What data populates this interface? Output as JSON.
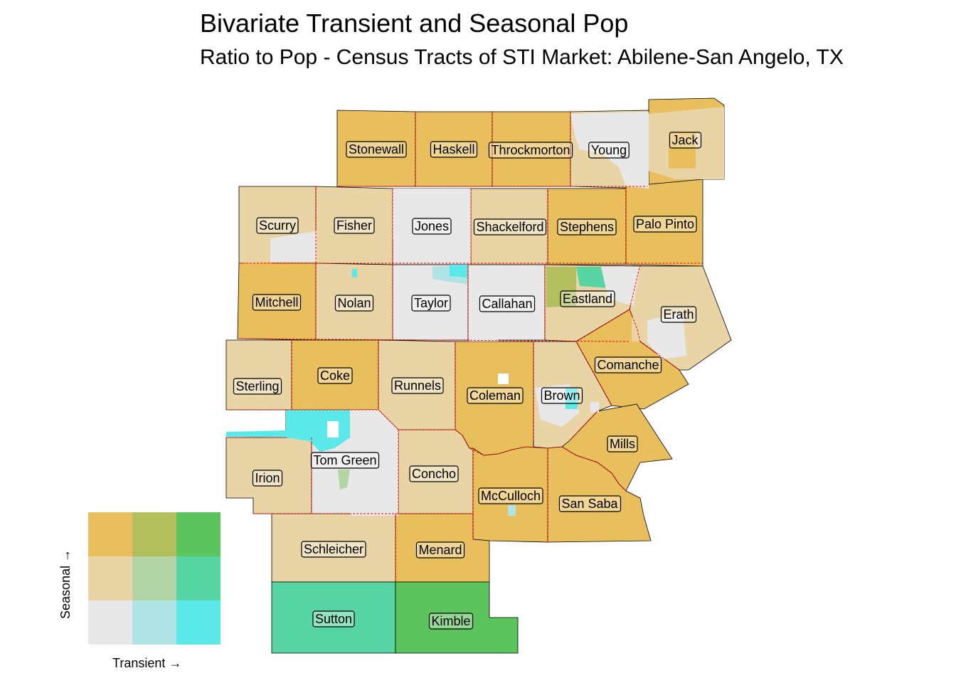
{
  "title": "Bivariate Transient and Seasonal Pop",
  "subtitle": "Ratio to Pop - Census Tracts of STI Market: Abilene-San Angelo, TX",
  "legend": {
    "x_label": "Transient →",
    "y_label": "Seasonal →",
    "colors": [
      [
        "#e8e8e8",
        "#b0e3e3",
        "#5ae8e8"
      ],
      [
        "#e8d4a4",
        "#b3d4a4",
        "#56d4a4"
      ],
      [
        "#e8bf5c",
        "#b3bf5c",
        "#5bc45c"
      ]
    ]
  },
  "counties": [
    {
      "name": "Stonewall",
      "color": "#e8bf5c"
    },
    {
      "name": "Haskell",
      "color": "#e8bf5c"
    },
    {
      "name": "Throckmorton",
      "color": "#e8bf5c"
    },
    {
      "name": "Young",
      "color": "#e8d4a4"
    },
    {
      "name": "Jack",
      "color": "#e8bf5c"
    },
    {
      "name": "Scurry",
      "color": "#e8d4a4"
    },
    {
      "name": "Fisher",
      "color": "#e8d4a4"
    },
    {
      "name": "Jones",
      "color": "#e8e8e8"
    },
    {
      "name": "Shackelford",
      "color": "#e8d4a4"
    },
    {
      "name": "Stephens",
      "color": "#e8bf5c"
    },
    {
      "name": "Palo Pinto",
      "color": "#e8bf5c"
    },
    {
      "name": "Mitchell",
      "color": "#e8bf5c"
    },
    {
      "name": "Nolan",
      "color": "#e8d4a4"
    },
    {
      "name": "Taylor",
      "color": "#e8e8e8"
    },
    {
      "name": "Callahan",
      "color": "#e8e8e8"
    },
    {
      "name": "Eastland",
      "color": "#e8d4a4"
    },
    {
      "name": "Erath",
      "color": "#e8d4a4"
    },
    {
      "name": "Sterling",
      "color": "#e8d4a4"
    },
    {
      "name": "Coke",
      "color": "#e8bf5c"
    },
    {
      "name": "Runnels",
      "color": "#e8d4a4"
    },
    {
      "name": "Coleman",
      "color": "#e8bf5c"
    },
    {
      "name": "Brown",
      "color": "#e8d4a4"
    },
    {
      "name": "Comanche",
      "color": "#e8bf5c"
    },
    {
      "name": "Mills",
      "color": "#e8bf5c"
    },
    {
      "name": "Irion",
      "color": "#e8d4a4"
    },
    {
      "name": "Tom Green",
      "color": "#e8e8e8"
    },
    {
      "name": "Concho",
      "color": "#e8d4a4"
    },
    {
      "name": "McCulloch",
      "color": "#e8bf5c"
    },
    {
      "name": "San Saba",
      "color": "#e8bf5c"
    },
    {
      "name": "Schleicher",
      "color": "#e8d4a4"
    },
    {
      "name": "Menard",
      "color": "#e8bf5c"
    },
    {
      "name": "Sutton",
      "color": "#56d4a4"
    },
    {
      "name": "Kimble",
      "color": "#5bc45c"
    }
  ]
}
